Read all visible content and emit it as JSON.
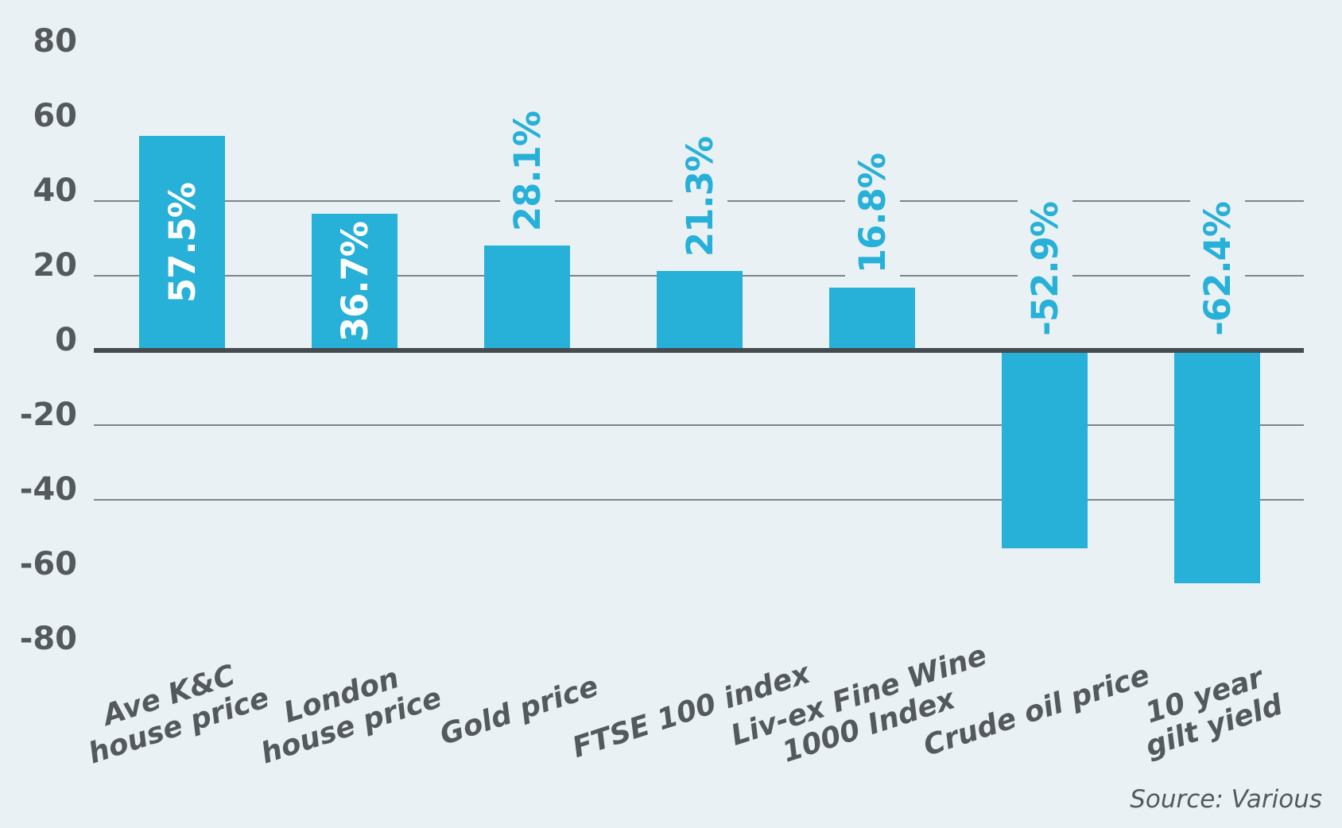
{
  "chart_data": {
    "type": "bar",
    "title": "",
    "xlabel": "",
    "ylabel": "",
    "categories": [
      "Ave K&C\nhouse price",
      "London\nhouse price",
      "Gold price",
      "FTSE 100 index",
      "Liv-ex Fine Wine\n1000 Index",
      "Crude oil price",
      "10 year\ngilt yield"
    ],
    "values": [
      57.5,
      36.7,
      28.1,
      21.3,
      16.8,
      -52.9,
      -62.4
    ],
    "value_labels": [
      "57.5%",
      "36.7%",
      "28.1%",
      "21.3%",
      "16.8%",
      "-52.9%",
      "-62.4%"
    ],
    "value_label_placement": [
      "inside",
      "inside",
      "above-bar",
      "above-bar",
      "above-bar",
      "above-zero",
      "above-zero"
    ],
    "y_ticks": [
      80,
      60,
      40,
      20,
      0,
      -20,
      -40,
      -60,
      -80
    ],
    "ylim": [
      -80,
      80
    ],
    "gridlines_at": [
      40,
      20,
      -20,
      -40
    ],
    "grid": "horizontal-partial",
    "legend": "none",
    "source_note": "Source: Various",
    "colors": {
      "bar": "#27b0d8",
      "value_label_inside": "#ffffff",
      "value_label_outside": "#27b0d8",
      "axis_text": "#54595c",
      "category_text": "#54595c",
      "zero_line": "#454b4e",
      "gridline": "#7e8588",
      "background": "#e9f1f4",
      "source_text": "#54595c"
    }
  }
}
